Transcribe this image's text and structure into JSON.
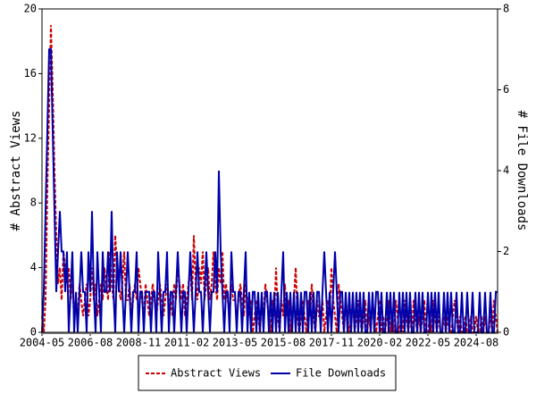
{
  "chart_data": {
    "type": "line",
    "y_label": "# Abstract Views",
    "y2_label": "# File Downloads",
    "categories": [
      "2004-05",
      null,
      null,
      null,
      null,
      null,
      null,
      null,
      null,
      null,
      null,
      null,
      null,
      null,
      null,
      null,
      null,
      null,
      null,
      null,
      null,
      null,
      null,
      null,
      null,
      null,
      null,
      "2006-08",
      null,
      null,
      null,
      null,
      null,
      null,
      null,
      null,
      null,
      null,
      null,
      null,
      null,
      null,
      null,
      null,
      null,
      null,
      null,
      null,
      null,
      null,
      null,
      null,
      null,
      null,
      "2008-11",
      null,
      null,
      null,
      null,
      null,
      null,
      null,
      null,
      null,
      null,
      null,
      null,
      null,
      null,
      null,
      null,
      null,
      null,
      null,
      null,
      null,
      null,
      null,
      null,
      null,
      null,
      "2011-02",
      null,
      null,
      null,
      null,
      null,
      null,
      null,
      null,
      null,
      null,
      null,
      null,
      null,
      null,
      null,
      null,
      null,
      null,
      null,
      null,
      null,
      null,
      null,
      null,
      null,
      null,
      "2013-05",
      null,
      null,
      null,
      null,
      null,
      null,
      null,
      null,
      null,
      null,
      null,
      null,
      null,
      null,
      null,
      null,
      null,
      null,
      null,
      null,
      null,
      null,
      null,
      null,
      null,
      null,
      "2015-08",
      null,
      null,
      null,
      null,
      null,
      null,
      null,
      null,
      null,
      null,
      null,
      null,
      null,
      null,
      null,
      null,
      null,
      null,
      null,
      null,
      null,
      null,
      null,
      null,
      null,
      null,
      "2017-11",
      null,
      null,
      null,
      null,
      null,
      null,
      null,
      null,
      null,
      null,
      null,
      null,
      null,
      null,
      null,
      null,
      null,
      null,
      null,
      null,
      null,
      null,
      null,
      null,
      null,
      null,
      "2020-02",
      null,
      null,
      null,
      null,
      null,
      null,
      null,
      null,
      null,
      null,
      null,
      null,
      null,
      null,
      null,
      null,
      null,
      null,
      null,
      null,
      null,
      null,
      null,
      null,
      null,
      null,
      "2022-05",
      null,
      null,
      null,
      null,
      null,
      null,
      null,
      null,
      null,
      null,
      null,
      null,
      null,
      null,
      null,
      null,
      null,
      null,
      null,
      null,
      null,
      null,
      null,
      null,
      null,
      null,
      "2024-08",
      null,
      null,
      null,
      null,
      null,
      null,
      null,
      null,
      null,
      null,
      null,
      null
    ],
    "series": [
      {
        "name": "Abstract Views",
        "color": "#cc0000",
        "dash": true,
        "values": [
          1,
          0,
          2,
          9,
          14,
          19,
          15,
          10,
          6,
          3,
          4,
          2,
          5,
          4,
          3,
          4,
          2,
          3,
          1,
          2,
          1,
          3,
          2,
          1,
          2,
          3,
          1,
          2,
          4,
          2,
          3,
          1,
          2,
          3,
          2,
          4,
          3,
          2,
          5,
          3,
          2,
          6,
          4,
          3,
          2,
          3,
          5,
          2,
          2,
          3,
          1,
          2,
          3,
          2,
          4,
          3,
          2,
          1,
          3,
          2,
          1,
          2,
          3,
          2,
          1,
          2,
          3,
          2,
          1,
          2,
          3,
          2,
          2,
          1,
          3,
          2,
          4,
          3,
          2,
          3,
          1,
          2,
          3,
          4,
          2,
          6,
          3,
          2,
          4,
          3,
          5,
          2,
          3,
          4,
          2,
          3,
          5,
          3,
          2,
          4,
          3,
          5,
          2,
          3,
          2,
          1,
          3,
          2,
          2,
          1,
          2,
          3,
          2,
          1,
          3,
          2,
          1,
          2,
          0,
          1,
          2,
          1,
          0,
          2,
          1,
          3,
          2,
          1,
          0,
          2,
          1,
          4,
          1,
          0,
          2,
          1,
          3,
          1,
          2,
          0,
          1,
          2,
          4,
          1,
          0,
          1,
          2,
          1,
          0,
          2,
          1,
          3,
          1,
          0,
          2,
          1,
          1,
          2,
          0,
          1,
          2,
          1,
          4,
          2,
          1,
          0,
          3,
          2,
          1,
          0,
          2,
          1,
          0,
          1,
          2,
          0,
          1,
          2,
          1,
          0,
          1,
          2,
          0,
          1,
          0,
          2,
          1,
          0,
          1,
          2,
          0,
          1,
          0,
          1,
          2,
          0,
          1,
          0,
          2,
          1,
          0,
          1,
          0,
          2,
          1,
          0,
          1,
          0,
          2,
          1,
          0,
          1,
          0,
          1,
          2,
          0,
          0,
          1,
          0,
          2,
          1,
          0,
          1,
          0,
          0,
          1,
          0,
          1,
          0,
          0,
          1,
          2,
          1,
          0,
          1,
          0,
          0,
          1,
          0,
          0,
          1,
          0,
          0,
          1,
          0,
          0,
          1,
          0,
          1,
          0,
          0,
          1,
          0,
          2,
          1,
          0
        ]
      },
      {
        "name": "File Downloads",
        "color": "#0000aa",
        "dash": false,
        "axis": "y2",
        "values": [
          0,
          1,
          3,
          5,
          7,
          7,
          5,
          3,
          1,
          2,
          3,
          2,
          2,
          1,
          2,
          0,
          1,
          2,
          0,
          1,
          0,
          1,
          2,
          1,
          1,
          0,
          2,
          1,
          3,
          1,
          0,
          2,
          1,
          0,
          2,
          1,
          1,
          2,
          1,
          3,
          1,
          0,
          2,
          1,
          2,
          1,
          0,
          1,
          2,
          1,
          0,
          1,
          1,
          2,
          0,
          1,
          1,
          0,
          1,
          1,
          1,
          0,
          1,
          1,
          0,
          2,
          1,
          0,
          1,
          1,
          2,
          0,
          1,
          1,
          0,
          1,
          2,
          1,
          0,
          1,
          1,
          0,
          1,
          2,
          1,
          0,
          1,
          2,
          1,
          1,
          0,
          1,
          2,
          1,
          0,
          1,
          1,
          2,
          1,
          4,
          2,
          1,
          0,
          1,
          1,
          0,
          2,
          1,
          1,
          0,
          1,
          1,
          0,
          1,
          2,
          0,
          1,
          0,
          1,
          1,
          0,
          1,
          0,
          1,
          0,
          1,
          1,
          0,
          1,
          0,
          1,
          0,
          1,
          0,
          1,
          2,
          0,
          1,
          0,
          1,
          0,
          1,
          0,
          1,
          0,
          1,
          0,
          1,
          1,
          0,
          1,
          0,
          1,
          0,
          1,
          1,
          0,
          1,
          2,
          1,
          0,
          1,
          0,
          1,
          2,
          1,
          0,
          1,
          1,
          0,
          1,
          0,
          1,
          0,
          1,
          0,
          1,
          0,
          1,
          0,
          1,
          0,
          0,
          1,
          0,
          1,
          0,
          1,
          1,
          0,
          1,
          0,
          0,
          1,
          0,
          1,
          0,
          1,
          0,
          0,
          1,
          0,
          1,
          0,
          1,
          0,
          1,
          0,
          0,
          1,
          0,
          1,
          0,
          1,
          0,
          0,
          1,
          0,
          1,
          0,
          1,
          0,
          1,
          0,
          0,
          1,
          0,
          1,
          0,
          1,
          0,
          0,
          1,
          0,
          0,
          1,
          0,
          0,
          1,
          0,
          0,
          1,
          0,
          0,
          0,
          1,
          0,
          0,
          1,
          0,
          0,
          1,
          0,
          0,
          1,
          1
        ]
      }
    ],
    "ylim": [
      0,
      20
    ],
    "yticks": [
      0,
      4,
      8,
      12,
      16,
      20
    ],
    "y2lim": [
      0,
      8
    ],
    "y2ticks": [
      0,
      2,
      4,
      6,
      8
    ]
  }
}
